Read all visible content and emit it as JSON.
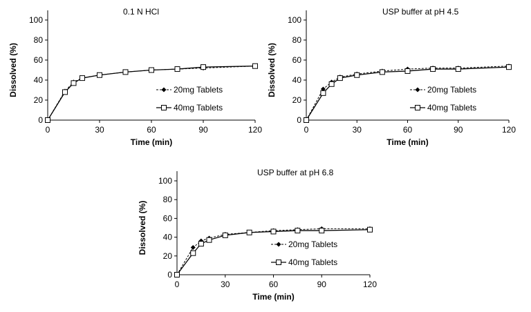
{
  "chart_data": [
    {
      "type": "line",
      "title": "0.1 N HCl",
      "xlabel": "Time (min)",
      "ylabel": "Dissolved (%)",
      "xlim": [
        0,
        120
      ],
      "ylim": [
        0,
        100
      ],
      "xticks": [
        0,
        30,
        60,
        90,
        120
      ],
      "yticks": [
        0,
        20,
        40,
        60,
        80,
        100
      ],
      "grid": false,
      "legend": "bottom-right",
      "x": [
        0,
        10,
        15,
        20,
        30,
        45,
        60,
        75,
        90,
        120
      ],
      "series": [
        {
          "name": "20mg Tablets",
          "marker": "diamond",
          "dash": "dashed",
          "values": [
            0,
            29,
            38,
            42,
            45,
            48,
            50,
            51,
            52,
            54
          ]
        },
        {
          "name": "40mg Tablets",
          "marker": "square",
          "dash": "solid",
          "values": [
            0,
            28,
            37,
            42,
            45,
            48,
            50,
            51,
            53,
            54
          ]
        }
      ]
    },
    {
      "type": "line",
      "title": "USP buffer at pH 4.5",
      "xlabel": "Time (min)",
      "ylabel": "Dissolved (%)",
      "xlim": [
        0,
        120
      ],
      "ylim": [
        0,
        100
      ],
      "xticks": [
        0,
        30,
        60,
        90,
        120
      ],
      "yticks": [
        0,
        20,
        40,
        60,
        80,
        100
      ],
      "grid": false,
      "legend": "bottom-right",
      "x": [
        0,
        10,
        15,
        20,
        30,
        45,
        60,
        75,
        90,
        120
      ],
      "series": [
        {
          "name": "20mg Tablets",
          "marker": "diamond",
          "dash": "dashed",
          "values": [
            0,
            31,
            38,
            43,
            46,
            49,
            51,
            52,
            52,
            54
          ]
        },
        {
          "name": "40mg Tablets",
          "marker": "square",
          "dash": "solid",
          "values": [
            0,
            27,
            36,
            42,
            45,
            48,
            49,
            51,
            51,
            53
          ]
        }
      ]
    },
    {
      "type": "line",
      "title": "USP buffer at pH 6.8",
      "xlabel": "Time (min)",
      "ylabel": "Dissolved (%)",
      "xlim": [
        0,
        120
      ],
      "ylim": [
        0,
        100
      ],
      "xticks": [
        0,
        30,
        60,
        90,
        120
      ],
      "yticks": [
        0,
        20,
        40,
        60,
        80,
        100
      ],
      "grid": false,
      "legend": "bottom-right",
      "x": [
        0,
        10,
        15,
        20,
        30,
        45,
        60,
        75,
        90,
        120
      ],
      "series": [
        {
          "name": "20mg Tablets",
          "marker": "diamond",
          "dash": "dashed",
          "values": [
            0,
            29,
            36,
            39,
            43,
            45,
            47,
            48,
            49,
            49
          ]
        },
        {
          "name": "40mg Tablets",
          "marker": "square",
          "dash": "solid",
          "values": [
            0,
            23,
            33,
            37,
            42,
            45,
            46,
            47,
            47,
            48
          ]
        }
      ]
    }
  ]
}
